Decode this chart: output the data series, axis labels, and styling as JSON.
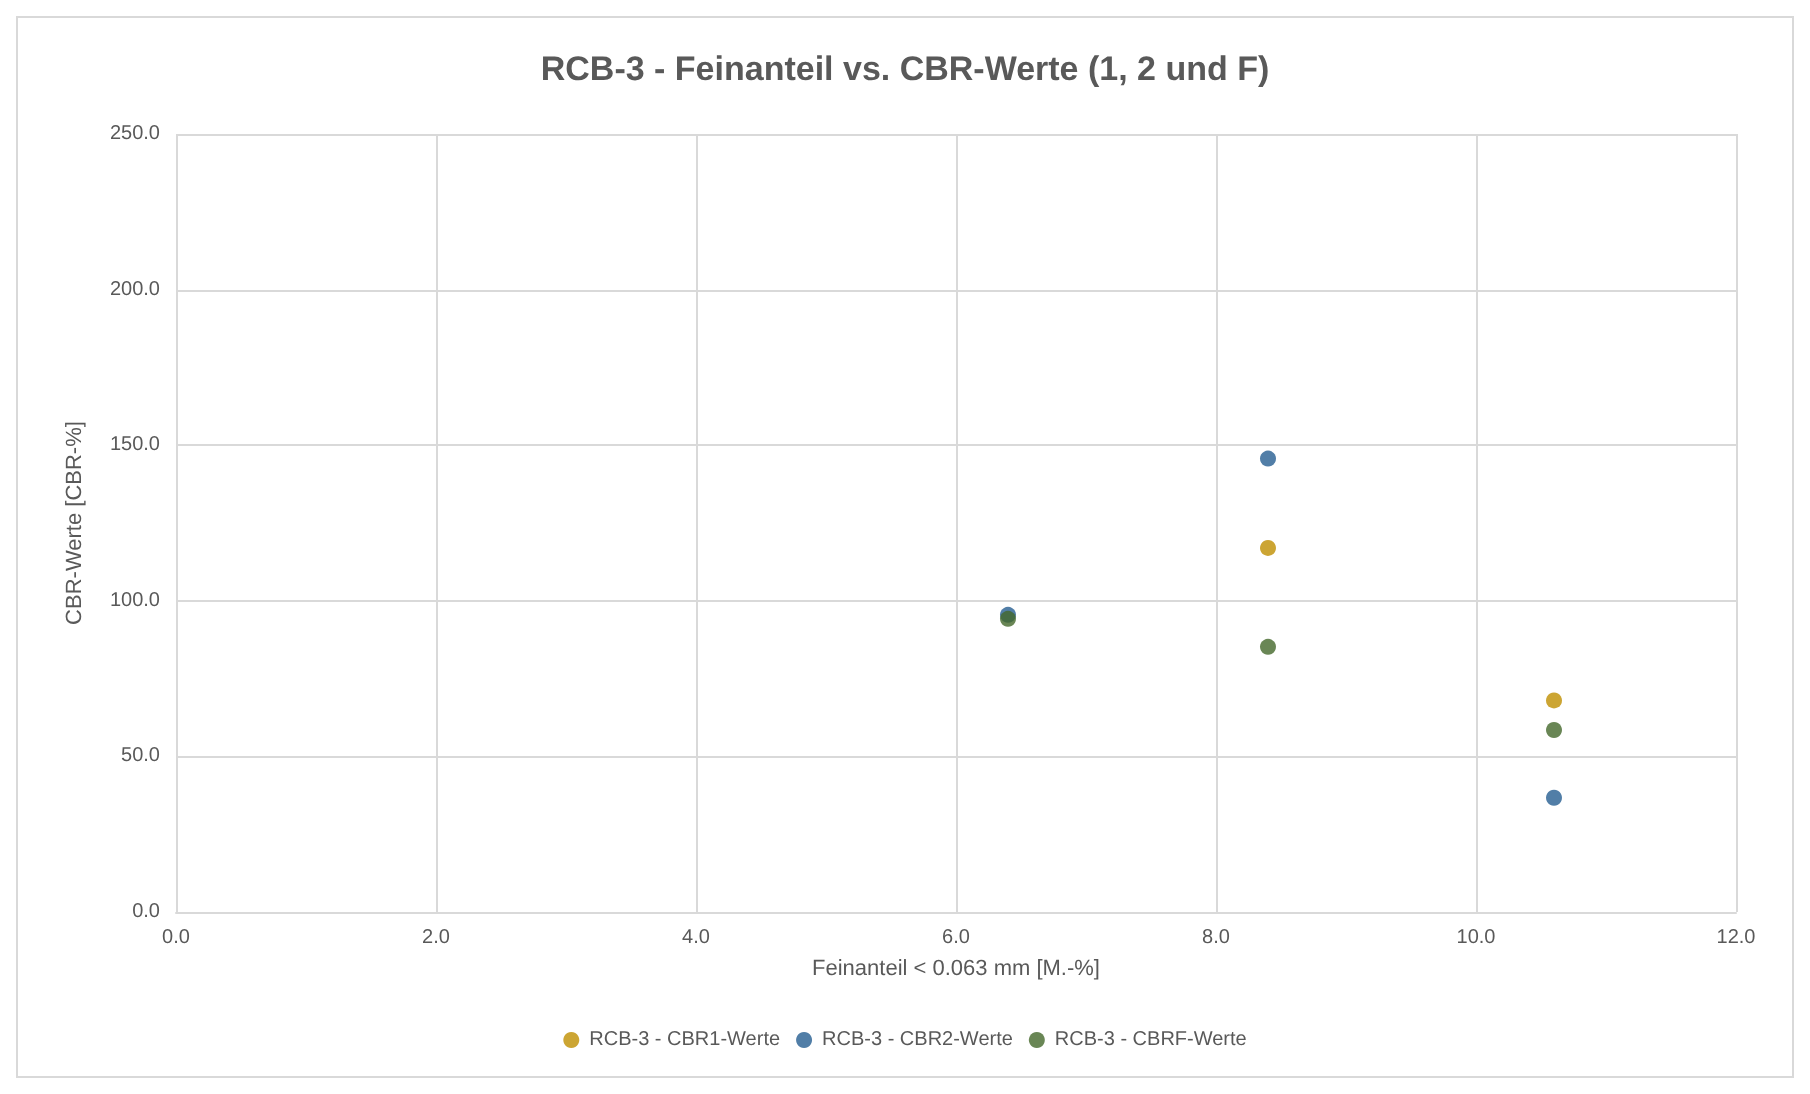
{
  "chart_data": {
    "type": "scatter",
    "title": "RCB-3 - Feinanteil vs. CBR-Werte (1, 2 und F)",
    "xlabel": "Feinanteil < 0.063 mm [M.-%]",
    "ylabel": "CBR-Werte [CBR-%]",
    "x": [
      6.4,
      8.4,
      10.6
    ],
    "series": [
      {
        "name": "RCB-3 - CBR1-Werte",
        "color": "#bf8f00",
        "values": [
          null,
          117,
          68
        ]
      },
      {
        "name": "RCB-3 - CBR2-Werte",
        "color": "#255e91",
        "values": [
          95.5,
          145.7,
          36.7
        ]
      },
      {
        "name": "RCB-3 - CBRF-Werte",
        "color": "#43682b",
        "values": [
          94.2,
          85.2,
          58.5
        ]
      }
    ],
    "xlim": [
      0,
      12
    ],
    "xticks": [
      {
        "value": 0,
        "label": "0.0"
      },
      {
        "value": 2,
        "label": "2.0"
      },
      {
        "value": 4,
        "label": "4.0"
      },
      {
        "value": 6,
        "label": "6.0"
      },
      {
        "value": 8,
        "label": "8.0"
      },
      {
        "value": 10,
        "label": "10.0"
      },
      {
        "value": 12,
        "label": "12.0"
      }
    ],
    "ylim": [
      0,
      250
    ],
    "yticks": [
      {
        "value": 0,
        "label": "0.0"
      },
      {
        "value": 50,
        "label": "50.0"
      },
      {
        "value": 100,
        "label": "100.0"
      },
      {
        "value": 150,
        "label": "150.0"
      },
      {
        "value": 200,
        "label": "200.0"
      },
      {
        "value": 250,
        "label": "250.0"
      }
    ],
    "grid": true,
    "legend": "bottom",
    "marker": "circle"
  }
}
